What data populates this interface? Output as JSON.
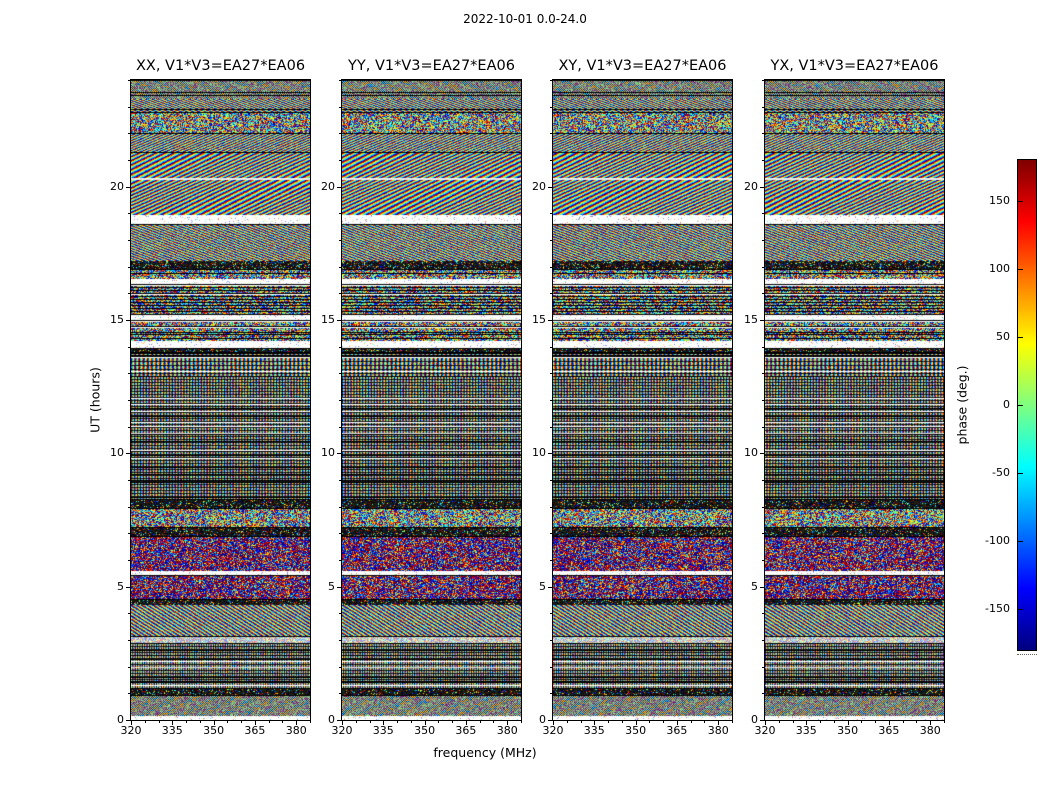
{
  "figure": {
    "title": "2022-10-01 0.0-24.0",
    "xlabel": "frequency (MHz)",
    "ylabel": "UT (hours)"
  },
  "panels": [
    {
      "title": "XX, V1*V3=EA27*EA06"
    },
    {
      "title": "YY, V1*V3=EA27*EA06"
    },
    {
      "title": "XY, V1*V3=EA27*EA06"
    },
    {
      "title": "YX, V1*V3=EA27*EA06"
    }
  ],
  "axes": {
    "x_ticks": [
      320,
      335,
      350,
      365,
      380
    ],
    "y_ticks": [
      0,
      5,
      10,
      15,
      20
    ],
    "x_range": [
      320,
      385
    ],
    "y_range": [
      0,
      24
    ]
  },
  "colorbar": {
    "label": "phase (deg.)",
    "ticks": [
      150,
      100,
      50,
      0,
      -50,
      -100,
      -150
    ],
    "range": [
      -180,
      180
    ],
    "colormap": "jet"
  },
  "chart_data": {
    "type": "heatmap",
    "title": "2022-10-01 0.0-24.0",
    "xlabel": "frequency (MHz)",
    "ylabel": "UT (hours)",
    "xlim": [
      320,
      385
    ],
    "ylim": [
      0,
      24
    ],
    "value_label": "phase (deg.)",
    "value_range": [
      -180,
      180
    ],
    "colormap": "jet",
    "panels": [
      "XX, V1*V3=EA27*EA06",
      "YY, V1*V3=EA27*EA06",
      "XY, V1*V3=EA27*EA06",
      "YX, V1*V3=EA27*EA06"
    ],
    "description": "Four dynamic cross-power phase spectra (baseline V1*V3 = EA27*EA06, polarizations XX/YY/XY/YX) over 0-24 UT hours vs 320-385 MHz. Phase is noise-like interferometric fringe texture; horizontal band structure (gaps, dark rows, fringe-rate changes) is aligned across all four panels.",
    "time_bands": [
      {
        "from": 0.0,
        "to": 0.15,
        "pattern": "white"
      },
      {
        "from": 0.15,
        "to": 0.95,
        "pattern": "fine"
      },
      {
        "from": 0.95,
        "to": 1.2,
        "pattern": "dark"
      },
      {
        "from": 1.2,
        "to": 2.9,
        "pattern": "vertgrid"
      },
      {
        "from": 2.9,
        "to": 3.15,
        "pattern": "lightnoise"
      },
      {
        "from": 3.15,
        "to": 4.3,
        "pattern": "diag"
      },
      {
        "from": 4.3,
        "to": 4.55,
        "pattern": "dark"
      },
      {
        "from": 4.55,
        "to": 5.45,
        "pattern": "hotnoise"
      },
      {
        "from": 5.45,
        "to": 5.6,
        "pattern": "white"
      },
      {
        "from": 5.6,
        "to": 6.9,
        "pattern": "hotnoise"
      },
      {
        "from": 6.9,
        "to": 7.25,
        "pattern": "dark"
      },
      {
        "from": 7.25,
        "to": 7.95,
        "pattern": "noise"
      },
      {
        "from": 7.95,
        "to": 8.3,
        "pattern": "dark"
      },
      {
        "from": 8.3,
        "to": 12.9,
        "pattern": "vertgrid"
      },
      {
        "from": 12.9,
        "to": 13.75,
        "pattern": "vertgrid"
      },
      {
        "from": 13.75,
        "to": 13.95,
        "pattern": "dark"
      },
      {
        "from": 13.95,
        "to": 14.2,
        "pattern": "white"
      },
      {
        "from": 14.2,
        "to": 15.0,
        "pattern": "noiseline"
      },
      {
        "from": 15.0,
        "to": 15.2,
        "pattern": "white"
      },
      {
        "from": 15.2,
        "to": 16.35,
        "pattern": "noiseline"
      },
      {
        "from": 16.35,
        "to": 16.55,
        "pattern": "white"
      },
      {
        "from": 16.55,
        "to": 16.9,
        "pattern": "noise"
      },
      {
        "from": 16.9,
        "to": 17.2,
        "pattern": "dark"
      },
      {
        "from": 17.2,
        "to": 18.6,
        "pattern": "diag"
      },
      {
        "from": 18.6,
        "to": 18.95,
        "pattern": "white"
      },
      {
        "from": 18.95,
        "to": 21.3,
        "pattern": "wave"
      },
      {
        "from": 21.3,
        "to": 22.0,
        "pattern": "diag"
      },
      {
        "from": 22.0,
        "to": 22.8,
        "pattern": "noise"
      },
      {
        "from": 22.8,
        "to": 23.3,
        "pattern": "diag"
      },
      {
        "from": 23.3,
        "to": 24.0,
        "pattern": "fine"
      }
    ]
  }
}
